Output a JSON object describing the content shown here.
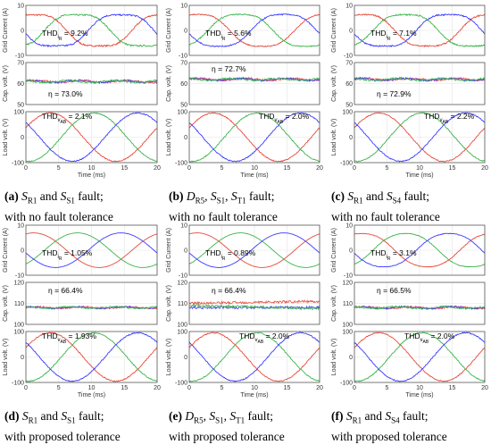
{
  "figure": {
    "panels": [
      {
        "id": "a",
        "letter": "(a)",
        "fault_parts": [
          [
            "S",
            "R1"
          ],
          [
            "S",
            "S1"
          ]
        ],
        "fault_tail": " fault;",
        "line2": "with no fault tolerance"
      },
      {
        "id": "b",
        "letter": "(b)",
        "fault_parts": [
          [
            "D",
            "R5"
          ],
          [
            "S",
            "S1"
          ],
          [
            "S",
            "T1"
          ]
        ],
        "fault_tail": " fault;",
        "line2": "with no fault tolerance"
      },
      {
        "id": "c",
        "letter": "(c)",
        "fault_parts": [
          [
            "S",
            "R1"
          ],
          [
            "S",
            "S4"
          ]
        ],
        "fault_tail": " fault;",
        "line2": "with no fault tolerance"
      },
      {
        "id": "d",
        "letter": "(d)",
        "fault_parts": [
          [
            "S",
            "R1"
          ],
          [
            "S",
            "S1"
          ]
        ],
        "fault_tail": " fault;",
        "line2": "with proposed tolerance"
      },
      {
        "id": "e",
        "letter": "(e)",
        "fault_parts": [
          [
            "D",
            "R5"
          ],
          [
            "S",
            "S1"
          ],
          [
            "S",
            "T1"
          ]
        ],
        "fault_tail": " fault;",
        "line2": "with proposed tolerance"
      },
      {
        "id": "f",
        "letter": "(f)",
        "fault_parts": [
          [
            "S",
            "R1"
          ],
          [
            "S",
            "S4"
          ]
        ],
        "fault_tail": " fault;",
        "line2": "with proposed tolerance"
      }
    ]
  },
  "chart_data": [
    {
      "panel": "a",
      "type": "line",
      "title": "",
      "xlabel": "Time (ms)",
      "xlim": [
        0,
        20
      ],
      "xticks": [
        "0",
        "5",
        "10",
        "15",
        "20"
      ],
      "subplots": [
        {
          "ylabel": "Grid Current (A)",
          "ylim": [
            -10,
            10
          ],
          "yticks": [
            "10",
            "0",
            "-10"
          ],
          "annotation": "THD = 9.2%",
          "annotation_sub": "i",
          "annotation_subsub": "R",
          "series": [
            {
              "name": "phase-1",
              "color": "#e64a3b"
            },
            {
              "name": "phase-2",
              "color": "#3cb44b"
            },
            {
              "name": "phase-3",
              "color": "#3a3aff"
            }
          ],
          "amplitude": 7,
          "distortion": 0.2
        },
        {
          "ylabel": "Cap. volt. (V)",
          "ylim": [
            50,
            70
          ],
          "yticks": [
            "70",
            "60",
            "50"
          ],
          "annotation": "η = 73.0%",
          "values_mean": [
            61,
            61,
            61
          ],
          "ripple": 1
        },
        {
          "ylabel": "Load volt. (V)",
          "ylim": [
            -100,
            100
          ],
          "yticks": [
            "100",
            "0",
            "-100"
          ],
          "annotation": "THD = 2.1%",
          "annotation_sub": "v",
          "annotation_subsub": "AB",
          "amplitude": 95
        }
      ]
    },
    {
      "panel": "b",
      "type": "line",
      "title": "",
      "xlabel": "Time (ms)",
      "xlim": [
        0,
        20
      ],
      "xticks": [
        "0",
        "5",
        "10",
        "15",
        "20"
      ],
      "subplots": [
        {
          "ylabel": "Grid Current (A)",
          "ylim": [
            -10,
            10
          ],
          "yticks": [
            "10",
            "0",
            "-10"
          ],
          "annotation": "THD = 5.6%",
          "annotation_sub": "i",
          "annotation_subsub": "R",
          "amplitude": 7,
          "distortion": 0.15
        },
        {
          "ylabel": "Cap. volt. (V)",
          "ylim": [
            50,
            70
          ],
          "yticks": [
            "70",
            "60",
            "50"
          ],
          "annotation": "η = 72.7%",
          "values_mean": [
            62,
            62,
            62
          ],
          "ripple": 1
        },
        {
          "ylabel": "Load volt. (V)",
          "ylim": [
            -100,
            100
          ],
          "yticks": [
            "100",
            "0",
            "-100"
          ],
          "annotation": "THD = 2.0%",
          "annotation_sub": "v",
          "annotation_subsub": "AB",
          "amplitude": 95
        }
      ]
    },
    {
      "panel": "c",
      "type": "line",
      "title": "",
      "xlabel": "Time (ms)",
      "xlim": [
        0,
        20
      ],
      "xticks": [
        "0",
        "5",
        "10",
        "15",
        "20"
      ],
      "subplots": [
        {
          "ylabel": "Grid Current (A)",
          "ylim": [
            -10,
            10
          ],
          "yticks": [
            "10",
            "0",
            "-10"
          ],
          "annotation": "THD = 7.1%",
          "annotation_sub": "i",
          "annotation_subsub": "R",
          "amplitude": 7,
          "distortion": 0.18
        },
        {
          "ylabel": "Cap. volt. (V)",
          "ylim": [
            50,
            70
          ],
          "yticks": [
            "70",
            "60",
            "50"
          ],
          "annotation": "η = 72.9%",
          "values_mean": [
            62,
            62,
            62
          ],
          "ripple": 1
        },
        {
          "ylabel": "Load volt. (V)",
          "ylim": [
            -100,
            100
          ],
          "yticks": [
            "100",
            "0",
            "-100"
          ],
          "annotation": "THD = 2.2%",
          "annotation_sub": "v",
          "annotation_subsub": "AB",
          "amplitude": 95
        }
      ]
    },
    {
      "panel": "d",
      "type": "line",
      "title": "",
      "xlabel": "Time (ms)",
      "xlim": [
        0,
        20
      ],
      "xticks": [
        "0",
        "5",
        "10",
        "15",
        "20"
      ],
      "subplots": [
        {
          "ylabel": "Grid Current (A)",
          "ylim": [
            -10,
            10
          ],
          "yticks": [
            "10",
            "0",
            "-10"
          ],
          "annotation": "THD = 1.05%",
          "annotation_sub": "i",
          "annotation_subsub": "R",
          "amplitude": 7,
          "distortion": 0.02
        },
        {
          "ylabel": "Cap. volt. (V)",
          "ylim": [
            100,
            120
          ],
          "yticks": [
            "120",
            "110",
            "100"
          ],
          "annotation": "η = 66.4%",
          "values_mean": [
            108,
            108,
            108
          ],
          "ripple": 0.8
        },
        {
          "ylabel": "Load volt. (V)",
          "ylim": [
            -100,
            100
          ],
          "yticks": [
            "100",
            "0",
            "-100"
          ],
          "annotation": "THD = 1.93%",
          "annotation_sub": "v",
          "annotation_subsub": "AB",
          "amplitude": 95
        }
      ]
    },
    {
      "panel": "e",
      "type": "line",
      "title": "",
      "xlabel": "Time (ms)",
      "xlim": [
        0,
        20
      ],
      "xticks": [
        "0",
        "5",
        "10",
        "15",
        "20"
      ],
      "subplots": [
        {
          "ylabel": "Grid Current (A)",
          "ylim": [
            -10,
            10
          ],
          "yticks": [
            "10",
            "0",
            "-10"
          ],
          "annotation": "THD = 0.89%",
          "annotation_sub": "i",
          "annotation_subsub": "R",
          "amplitude": 7,
          "distortion": 0.02
        },
        {
          "ylabel": "Cap. volt. (V)",
          "ylim": [
            100,
            120
          ],
          "yticks": [
            "120",
            "110",
            "100"
          ],
          "annotation": "η = 66.4%",
          "values_mean": [
            110,
            108,
            109
          ],
          "ripple": 1.2
        },
        {
          "ylabel": "Load volt. (V)",
          "ylim": [
            -100,
            100
          ],
          "yticks": [
            "100",
            "0",
            "-100"
          ],
          "annotation": "THD = 2.0%",
          "annotation_sub": "v",
          "annotation_subsub": "AB",
          "amplitude": 95
        }
      ]
    },
    {
      "panel": "f",
      "type": "line",
      "title": "",
      "xlabel": "Time (ms)",
      "xlim": [
        0,
        20
      ],
      "xticks": [
        "0",
        "5",
        "10",
        "15",
        "20"
      ],
      "subplots": [
        {
          "ylabel": "Grid Current (A)",
          "ylim": [
            -10,
            10
          ],
          "yticks": [
            "10",
            "0",
            "-10"
          ],
          "annotation": "THD = 3.1%",
          "annotation_sub": "i",
          "annotation_subsub": "R",
          "amplitude": 7,
          "distortion": 0.08
        },
        {
          "ylabel": "Cap. volt. (V)",
          "ylim": [
            100,
            120
          ],
          "yticks": [
            "120",
            "110",
            "100"
          ],
          "annotation": "η = 66.5%",
          "values_mean": [
            108,
            108,
            108
          ],
          "ripple": 0.9
        },
        {
          "ylabel": "Load volt. (V)",
          "ylim": [
            -100,
            100
          ],
          "yticks": [
            "100",
            "0",
            "-100"
          ],
          "annotation": "THD = 2.0%",
          "annotation_sub": "v",
          "annotation_subsub": "AB",
          "amplitude": 95
        }
      ]
    }
  ]
}
